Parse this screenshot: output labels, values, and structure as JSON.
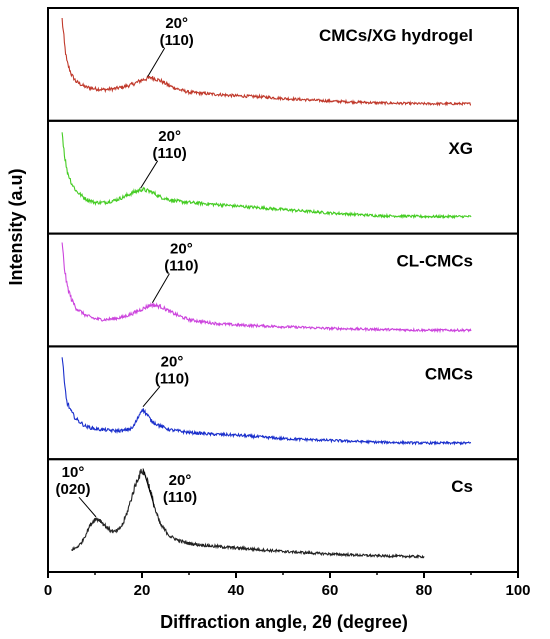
{
  "chart_data": {
    "type": "line",
    "xlabel": "Diffraction angle, 2θ (degree)",
    "ylabel": "Intensity (a.u)",
    "xlim": [
      0,
      100
    ],
    "xticks": [
      "0",
      "20",
      "40",
      "60",
      "80",
      "100"
    ],
    "layout": "stacked panels, no y ticks, no grid",
    "series": [
      {
        "name": "CMCs/XG hydrogel",
        "color": "#c0392b",
        "x": [
          3,
          3.5,
          4,
          5,
          6,
          8,
          10,
          12,
          14,
          16,
          18,
          20,
          22,
          24,
          26,
          28,
          30,
          35,
          40,
          45,
          50,
          60,
          70,
          80,
          90
        ],
        "y": [
          1.0,
          0.72,
          0.52,
          0.37,
          0.29,
          0.23,
          0.21,
          0.2,
          0.21,
          0.23,
          0.26,
          0.31,
          0.34,
          0.3,
          0.24,
          0.2,
          0.17,
          0.15,
          0.13,
          0.12,
          0.1,
          0.07,
          0.05,
          0.04,
          0.04
        ],
        "annotations": [
          {
            "x": 21,
            "line1": "20°",
            "line2": "(110)"
          }
        ]
      },
      {
        "name": "XG",
        "color": "#44cc22",
        "x": [
          3,
          3.5,
          4,
          5,
          6,
          8,
          10,
          12,
          14,
          16,
          18,
          20,
          22,
          24,
          26,
          28,
          30,
          35,
          40,
          45,
          50,
          60,
          70,
          80,
          90
        ],
        "y": [
          1.0,
          0.75,
          0.57,
          0.42,
          0.33,
          0.24,
          0.2,
          0.2,
          0.22,
          0.26,
          0.31,
          0.35,
          0.32,
          0.26,
          0.23,
          0.21,
          0.2,
          0.18,
          0.16,
          0.14,
          0.12,
          0.08,
          0.05,
          0.04,
          0.04
        ],
        "annotations": [
          {
            "x": 19.5,
            "line1": "20°",
            "line2": "(110)"
          }
        ]
      },
      {
        "name": "CL-CMCs",
        "color": "#cc44dd",
        "x": [
          3,
          3.5,
          4,
          5,
          6,
          8,
          10,
          12,
          14,
          16,
          18,
          20,
          22,
          24,
          26,
          28,
          30,
          35,
          40,
          45,
          50,
          60,
          70,
          80,
          90
        ],
        "y": [
          1.0,
          0.74,
          0.55,
          0.38,
          0.28,
          0.2,
          0.16,
          0.15,
          0.16,
          0.18,
          0.22,
          0.27,
          0.32,
          0.3,
          0.24,
          0.19,
          0.15,
          0.11,
          0.09,
          0.08,
          0.07,
          0.05,
          0.04,
          0.03,
          0.03
        ],
        "annotations": [
          {
            "x": 22,
            "line1": "20°",
            "line2": "(110)"
          }
        ]
      },
      {
        "name": "CMCs",
        "color": "#1a2fcc",
        "x": [
          3,
          3.5,
          4,
          5,
          6,
          8,
          10,
          12,
          14,
          16,
          18,
          19,
          20,
          21,
          22,
          24,
          26,
          30,
          35,
          40,
          45,
          50,
          60,
          70,
          80,
          90
        ],
        "y": [
          1.0,
          0.7,
          0.5,
          0.38,
          0.3,
          0.22,
          0.19,
          0.18,
          0.17,
          0.17,
          0.2,
          0.3,
          0.42,
          0.36,
          0.28,
          0.22,
          0.18,
          0.15,
          0.13,
          0.12,
          0.1,
          0.08,
          0.06,
          0.04,
          0.03,
          0.03
        ],
        "annotations": [
          {
            "x": 20,
            "line1": "20°",
            "line2": "(110)"
          }
        ]
      },
      {
        "name": "Cs",
        "color": "#222222",
        "x": [
          5,
          6,
          7,
          8,
          9,
          10,
          11,
          12,
          13,
          14,
          15,
          16,
          17,
          18,
          19,
          20,
          21,
          22,
          23,
          24,
          26,
          28,
          30,
          35,
          40,
          45,
          50,
          60,
          70,
          80
        ],
        "y": [
          0.1,
          0.12,
          0.17,
          0.27,
          0.38,
          0.45,
          0.44,
          0.38,
          0.33,
          0.3,
          0.32,
          0.4,
          0.55,
          0.73,
          0.9,
          1.0,
          0.92,
          0.72,
          0.52,
          0.38,
          0.25,
          0.2,
          0.17,
          0.14,
          0.12,
          0.1,
          0.08,
          0.05,
          0.03,
          0.02
        ],
        "annotations": [
          {
            "x": 10,
            "line1": "10°",
            "line2": "(020)"
          },
          {
            "x": 20,
            "line1": "20°",
            "line2": "(110)"
          }
        ]
      }
    ]
  }
}
